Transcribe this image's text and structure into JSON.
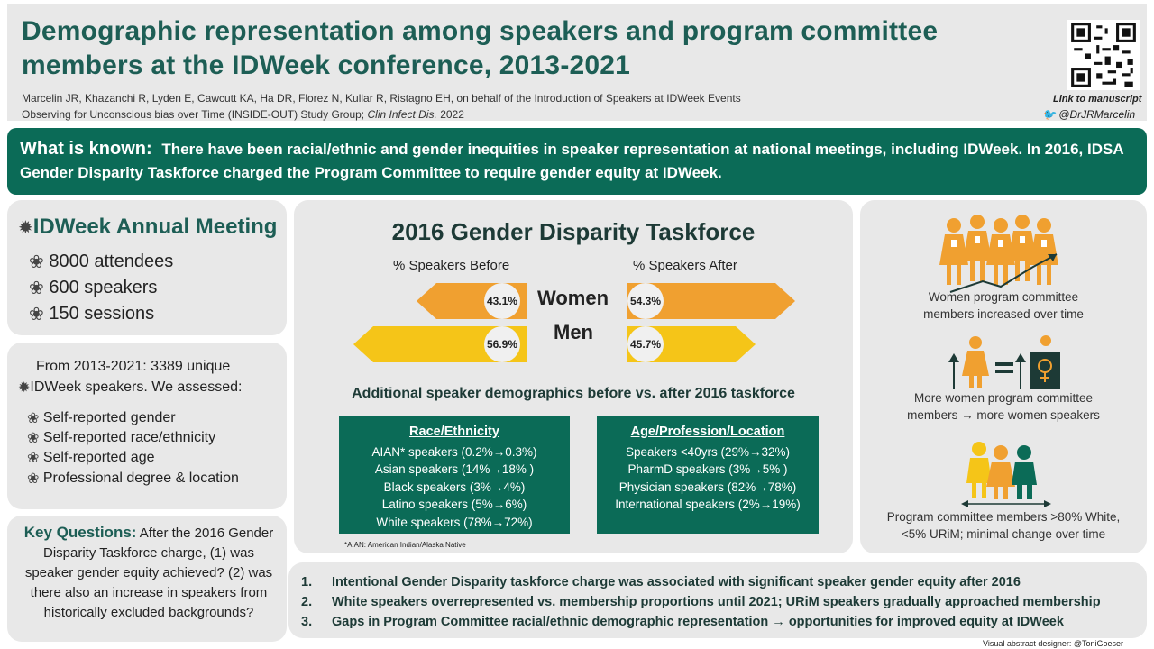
{
  "header": {
    "title": "Demographic representation among speakers and program committee members at the IDWeek conference, 2013-2021",
    "authors": "Marcelin JR, Khazanchi R, Lyden E, Cawcutt KA, Ha DR, Florez N, Kullar R, Ristagno EH, on behalf of the Introduction of Speakers at IDWeek Events",
    "study_group": "Observing for Unconscious bias over Time (INSIDE-OUT) Study Group;",
    "journal": "Clin Infect Dis.",
    "year": "2022",
    "qr_link": "Link to manuscript",
    "twitter": "@DrJRMarcelin"
  },
  "known": {
    "label": "What is known:",
    "text": "There have been racial/ethnic and gender inequities in speaker representation at national meetings, including IDWeek. In 2016, IDSA Gender Disparity Taskforce charged the Program Committee to require gender equity at IDWeek."
  },
  "meeting": {
    "title": "IDWeek Annual Meeting",
    "items": [
      "8000 attendees",
      "600 speakers",
      "150 sessions"
    ]
  },
  "speakers": {
    "intro_1": "From 2013-2021: 3389 unique",
    "intro_2": "IDWeek speakers. We assessed:",
    "items": [
      "Self-reported gender",
      "Self-reported race/ethnicity",
      "Self-reported age",
      "Professional degree & location"
    ]
  },
  "questions": {
    "label": "Key Questions:",
    "text": "After the 2016 Gender Disparity Taskforce charge, (1) was speaker gender equity achieved? (2) was there also an increase in speakers from historically excluded backgrounds?"
  },
  "taskforce": {
    "title": "2016 Gender Disparity Taskforce",
    "before_label": "% Speakers Before",
    "after_label": "% Speakers After",
    "women_label": "Women",
    "men_label": "Men",
    "women_before": "43.1%",
    "women_after": "54.3%",
    "men_before": "56.9%",
    "men_after": "45.7%",
    "women_color": "#f0a030",
    "men_color": "#f5c518"
  },
  "additional": {
    "title": "Additional speaker demographics before vs. after 2016 taskforce",
    "race": {
      "title": "Race/Ethnicity",
      "rows": [
        "AIAN* speakers (0.2%→0.3%)",
        "Asian speakers (14%→18% )",
        "Black speakers (3%→4%)",
        "Latino speakers (5%→6%)",
        "White speakers (78%→72%)"
      ]
    },
    "age": {
      "title": "Age/Profession/Location",
      "rows": [
        "Speakers <40yrs (29%→32%)",
        "PharmD speakers (3%→5% )",
        "Physician speakers (82%→78%)",
        "International speakers (2%→19%)"
      ]
    },
    "footnote": "*AIAN: American Indian/Alaska Native"
  },
  "right": {
    "cap1": [
      "Women program committee",
      "members increased over time"
    ],
    "cap2": [
      "More women program committee",
      "members → more women speakers"
    ],
    "cap3": [
      "Program committee members >80% White,",
      "<5% URiM; minimal change over time"
    ]
  },
  "conclusions": [
    {
      "n": "1.",
      "text": "Intentional Gender Disparity taskforce charge was associated with significant speaker gender equity after 2016"
    },
    {
      "n": "2.",
      "text": "White speakers overrepresented vs. membership proportions until 2021; URiM speakers gradually approached membership"
    },
    {
      "n": "3.",
      "text": "Gaps in Program Committee racial/ethnic demographic representation → opportunities for improved equity at IDWeek"
    }
  ],
  "designer": "Visual abstract designer: @ToniGoeser"
}
